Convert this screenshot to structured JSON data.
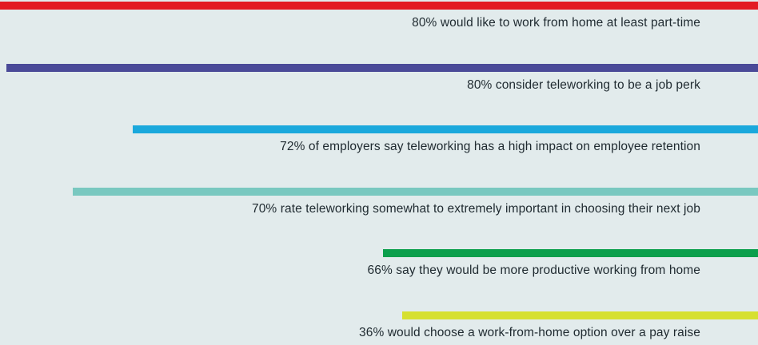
{
  "chart_data": {
    "type": "bar",
    "orientation": "horizontal",
    "align": "right",
    "items": [
      {
        "label": "80% would like to work from home at least part-time",
        "value": 80,
        "color": "#e31b23"
      },
      {
        "label": "80% consider teleworking to be a job perk",
        "value": 80,
        "color": "#4a4a98"
      },
      {
        "label": "72% of employers say teleworking has a high impact on employee retention",
        "value": 72,
        "color": "#1aa8dc"
      },
      {
        "label": "70% rate teleworking somewhat to extremely important in choosing their next job",
        "value": 70,
        "color": "#79c8c0"
      },
      {
        "label": "66% say they would be more productive working from home",
        "value": 66,
        "color": "#0b9f4c"
      },
      {
        "label": "36% would choose a work-from-home option over a pay raise",
        "value": 36,
        "color": "#d6e030"
      }
    ]
  }
}
